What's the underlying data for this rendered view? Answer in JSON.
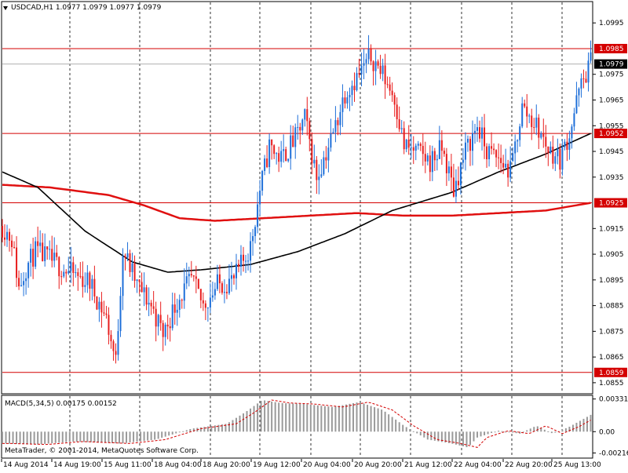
{
  "header": {
    "title": "USDCAD,H1  1.0977 1.0979 1.0977 1.0979"
  },
  "macd_panel": {
    "title": "MACD(5,34,5) 0.00175 0.00152",
    "copyright": "MetaTrader, © 2001-2014, MetaQuotes Software Corp.",
    "y_ticks": [
      "0.00331",
      "0.00",
      "-0.00216"
    ]
  },
  "price_axis": {
    "ticks": [
      "1.0995",
      "1.0975",
      "1.0965",
      "1.0955",
      "1.0945",
      "1.0935",
      "1.0915",
      "1.0905",
      "1.0895",
      "1.0885",
      "1.0875",
      "1.0865",
      "1.0855"
    ],
    "min": 1.0851,
    "max": 1.1003
  },
  "levels": [
    {
      "label": "1.0985",
      "value": 1.0985
    },
    {
      "label": "1.0952",
      "value": 1.0952
    },
    {
      "label": "1.0925",
      "value": 1.0925
    },
    {
      "label": "1.0859",
      "value": 1.0859
    }
  ],
  "current_price": {
    "label": "1.0979",
    "value": 1.0979
  },
  "time_axis": {
    "labels": [
      "14 Aug 2014",
      "14 Aug 19:00",
      "15 Aug 11:00",
      "18 Aug 04:00",
      "18 Aug 20:00",
      "19 Aug 12:00",
      "20 Aug 04:00",
      "20 Aug 20:00",
      "21 Aug 12:00",
      "22 Aug 04:00",
      "22 Aug 20:00",
      "25 Aug 13:00"
    ]
  },
  "colors": {
    "bull": "#1e6fd9",
    "bear": "#e81e1e",
    "level": "#d40000",
    "ma_fast": "#000000",
    "ma_slow": "#e01010",
    "grid": "#000000",
    "macd_hist": "#9a9a9a",
    "macd_signal": "#d40000"
  },
  "chart_data": {
    "type": "candlestick",
    "symbol": "USDCAD",
    "timeframe": "H1",
    "y_range": [
      1.0851,
      1.1003
    ],
    "anchors": [
      [
        0,
        1.0916
      ],
      [
        8,
        1.0911
      ],
      [
        14,
        1.0892
      ],
      [
        20,
        1.09
      ],
      [
        28,
        1.0906
      ],
      [
        40,
        1.0903
      ],
      [
        56,
        1.0898
      ],
      [
        74,
        1.0894
      ],
      [
        88,
        1.088
      ],
      [
        96,
        1.0863
      ],
      [
        102,
        1.0907
      ],
      [
        114,
        1.0893
      ],
      [
        126,
        1.0885
      ],
      [
        136,
        1.0874
      ],
      [
        148,
        1.0887
      ],
      [
        160,
        1.0895
      ],
      [
        170,
        1.0885
      ],
      [
        182,
        1.0893
      ],
      [
        196,
        1.0895
      ],
      [
        210,
        1.0908
      ],
      [
        218,
        1.093
      ],
      [
        226,
        1.0947
      ],
      [
        236,
        1.0942
      ],
      [
        248,
        1.095
      ],
      [
        256,
        1.0958
      ],
      [
        266,
        1.0935
      ],
      [
        280,
        1.0952
      ],
      [
        290,
        1.0968
      ],
      [
        302,
        1.0975
      ],
      [
        312,
        1.0982
      ],
      [
        322,
        1.0975
      ],
      [
        332,
        1.0966
      ],
      [
        340,
        1.0947
      ],
      [
        350,
        1.0945
      ],
      [
        362,
        1.0941
      ],
      [
        372,
        1.0946
      ],
      [
        382,
        1.093
      ],
      [
        392,
        1.0945
      ],
      [
        402,
        1.0955
      ],
      [
        410,
        1.0945
      ],
      [
        420,
        1.0942
      ],
      [
        430,
        1.0937
      ],
      [
        440,
        1.0962
      ],
      [
        452,
        1.0955
      ],
      [
        462,
        1.0946
      ],
      [
        472,
        1.0942
      ],
      [
        480,
        1.0952
      ],
      [
        488,
        1.0968
      ],
      [
        498,
        1.098
      ]
    ],
    "ma_fast": [
      [
        0,
        1.0937
      ],
      [
        30,
        1.0931
      ],
      [
        70,
        1.0914
      ],
      [
        110,
        1.0902
      ],
      [
        140,
        1.0898
      ],
      [
        170,
        1.0899
      ],
      [
        210,
        1.0901
      ],
      [
        250,
        1.0906
      ],
      [
        290,
        1.0913
      ],
      [
        330,
        1.0922
      ],
      [
        380,
        1.0929
      ],
      [
        420,
        1.0937
      ],
      [
        460,
        1.0944
      ],
      [
        498,
        1.0952
      ]
    ],
    "ma_slow": [
      [
        0,
        1.0932
      ],
      [
        40,
        1.0931
      ],
      [
        90,
        1.0928
      ],
      [
        120,
        1.0924
      ],
      [
        150,
        1.0919
      ],
      [
        180,
        1.0918
      ],
      [
        220,
        1.0919
      ],
      [
        260,
        1.092
      ],
      [
        300,
        1.0921
      ],
      [
        340,
        1.092
      ],
      [
        380,
        1.092
      ],
      [
        420,
        1.0921
      ],
      [
        460,
        1.0922
      ],
      [
        498,
        1.0925
      ]
    ],
    "macd_anchors": [
      [
        0,
        -0.0012
      ],
      [
        30,
        -0.0013
      ],
      [
        60,
        -0.001
      ],
      [
        100,
        -0.0012
      ],
      [
        130,
        -0.0008
      ],
      [
        160,
        0.0003
      ],
      [
        190,
        0.0008
      ],
      [
        206,
        0.002
      ],
      [
        220,
        0.0032
      ],
      [
        236,
        0.0029
      ],
      [
        256,
        0.0028
      ],
      [
        280,
        0.0025
      ],
      [
        302,
        0.003
      ],
      [
        322,
        0.0022
      ],
      [
        340,
        0.0006
      ],
      [
        360,
        -0.0008
      ],
      [
        380,
        -0.0012
      ],
      [
        394,
        -0.0016
      ],
      [
        402,
        -0.0006
      ],
      [
        420,
        0.0001
      ],
      [
        438,
        -0.0002
      ],
      [
        452,
        0.0006
      ],
      [
        466,
        -0.0002
      ],
      [
        480,
        0.0005
      ],
      [
        498,
        0.0017
      ]
    ],
    "macd_range": [
      -0.0026,
      0.0036
    ]
  }
}
